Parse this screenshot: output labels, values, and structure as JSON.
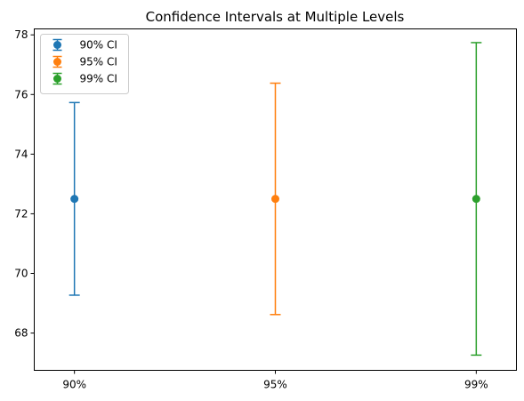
{
  "chart_data": {
    "type": "errorbar",
    "title": "Confidence Intervals at Multiple Levels",
    "xlabel": "",
    "ylabel": "",
    "categories": [
      "90%",
      "95%",
      "99%"
    ],
    "series": [
      {
        "name": "90% CI",
        "category": "90%",
        "mean": 72.5,
        "lower": 69.27,
        "upper": 75.73,
        "color": "#1f77b4"
      },
      {
        "name": "95% CI",
        "category": "95%",
        "mean": 72.5,
        "lower": 68.62,
        "upper": 76.38,
        "color": "#ff7f0e"
      },
      {
        "name": "99% CI",
        "category": "99%",
        "mean": 72.5,
        "lower": 67.26,
        "upper": 77.74,
        "color": "#2ca02c"
      }
    ],
    "ylim": [
      66.75,
      78.2
    ],
    "yticks": [
      68,
      70,
      72,
      74,
      76,
      78
    ],
    "grid": false,
    "legend_position": "upper-left"
  }
}
